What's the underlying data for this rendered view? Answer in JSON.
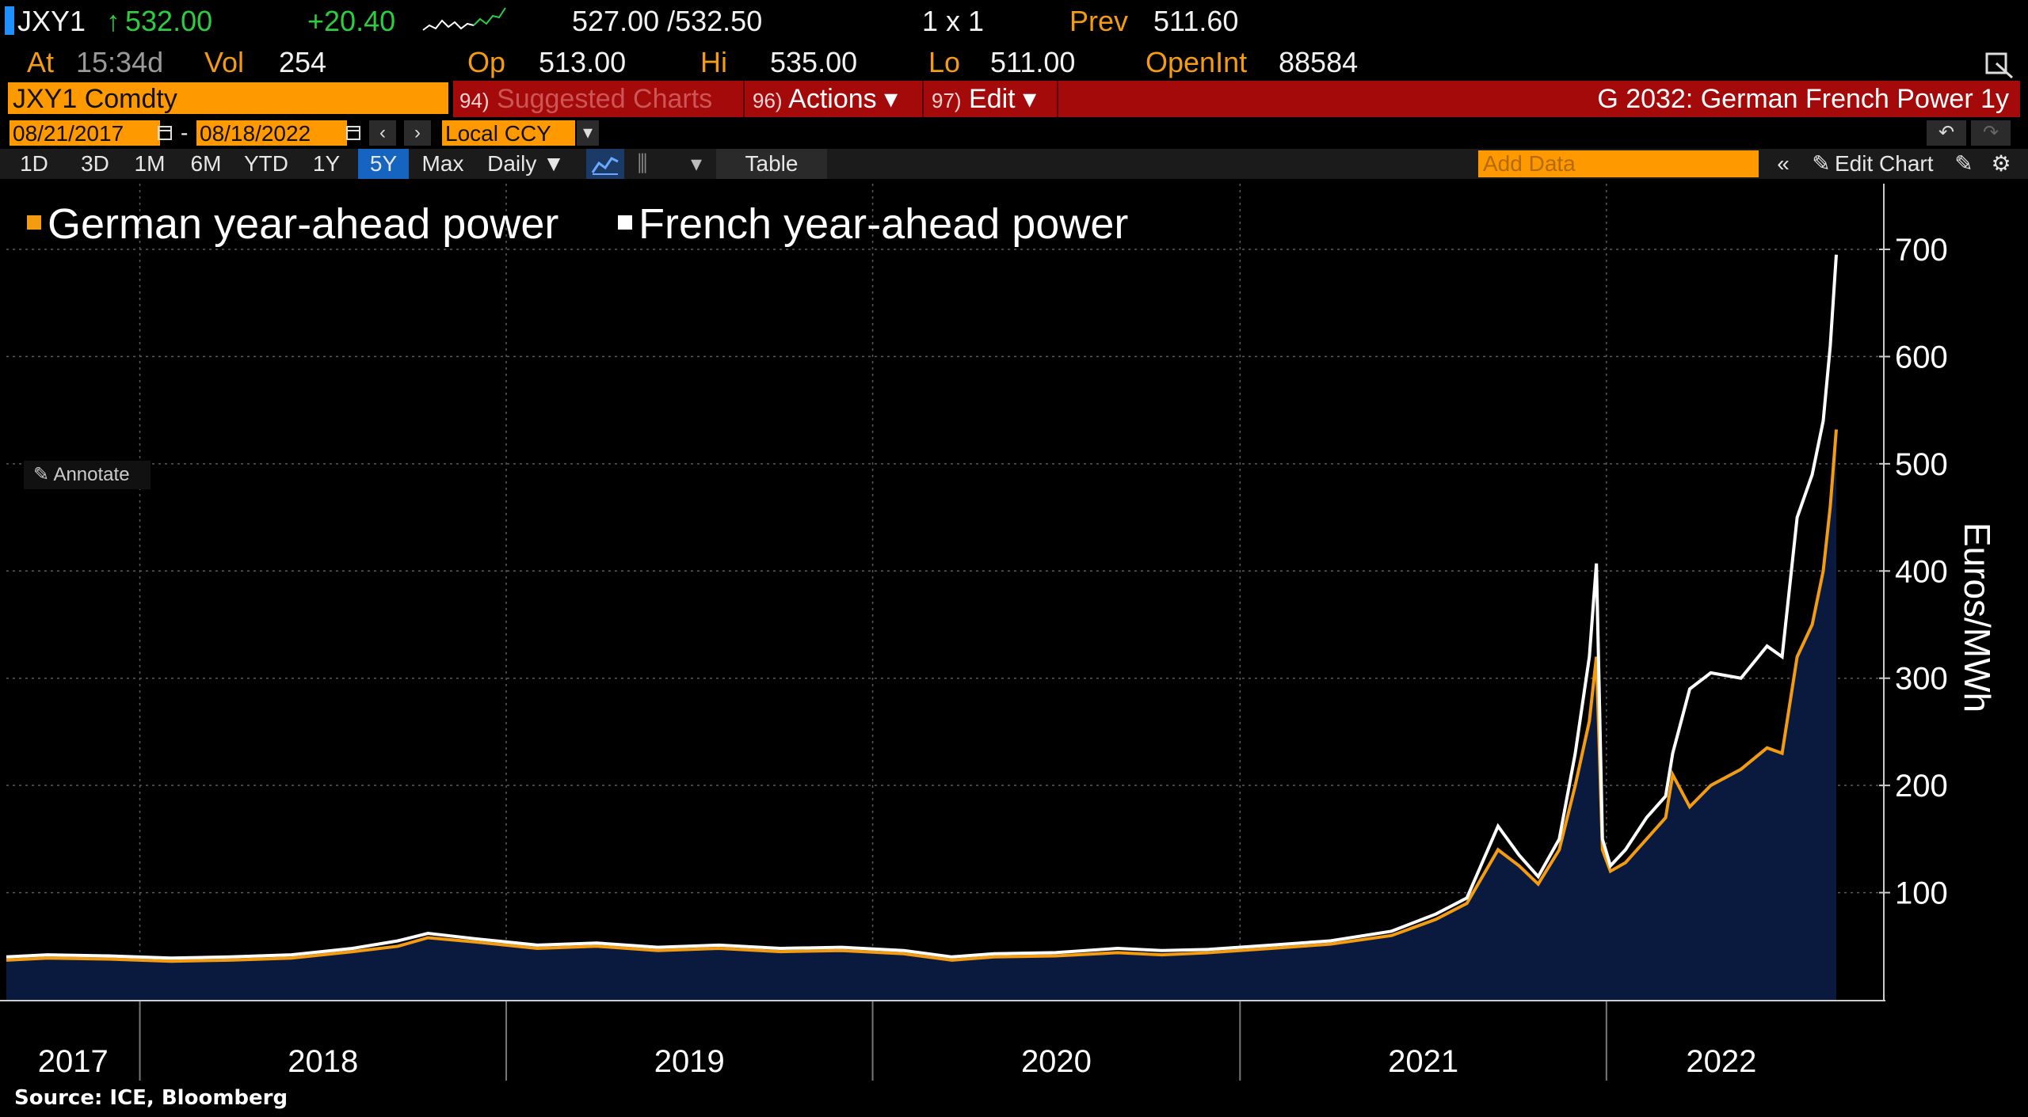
{
  "header": {
    "ticker": "JXY1",
    "last_arrow": "↑",
    "last": "532.00",
    "change": "+20.40",
    "bid_ask": "527.00 /532.50",
    "size": "1 x 1",
    "prev_label": "Prev",
    "prev": "511.60",
    "at_label": "At",
    "time": "15:34d",
    "vol_label": "Vol",
    "vol": "254",
    "op_label": "Op",
    "op": "513.00",
    "hi_label": "Hi",
    "hi": "535.00",
    "lo_label": "Lo",
    "lo": "511.00",
    "oi_label": "OpenInt",
    "oi": "88584"
  },
  "toolbar": {
    "security": "JXY1 Comdty",
    "suggested_num": "94)",
    "suggested": "Suggested Charts",
    "actions_num": "96)",
    "actions": "Actions ▾",
    "edit_num": "97)",
    "edit": "Edit ▾",
    "title": "G 2032: German French Power 1y",
    "start_date": "08/21/2017",
    "dash": "-",
    "end_date": "08/18/2022",
    "currency": "Local CCY",
    "periods": [
      "1D",
      "3D",
      "1M",
      "6M",
      "YTD",
      "1Y",
      "5Y",
      "Max"
    ],
    "active_period": "5Y",
    "frequency": "Daily ▼",
    "table": "Table",
    "add_data": "Add Data",
    "edit_chart": "Edit Chart",
    "annotate": "Annotate"
  },
  "colors": {
    "german": "#f39c12",
    "french": "#ffffff",
    "area": "#0a1a3e",
    "accent": "#ff9900",
    "red": "#a50a0a"
  },
  "source": "Source: ICE, Bloomberg",
  "chart_data": {
    "type": "line",
    "title": "",
    "xlabel": "",
    "ylabel": "Euros/MWh",
    "ylim": [
      0,
      700
    ],
    "yticks": [
      100,
      200,
      300,
      400,
      500,
      600,
      700
    ],
    "year_labels": [
      "2017",
      "2018",
      "2019",
      "2020",
      "2021",
      "2022"
    ],
    "legend_position": "top-left",
    "grid": true,
    "area_fill_series": "German year-ahead power",
    "x_dates": [
      "2017-08-21",
      "2017-10-01",
      "2017-12-01",
      "2018-02-01",
      "2018-04-01",
      "2018-06-01",
      "2018-08-01",
      "2018-09-15",
      "2018-10-15",
      "2018-12-01",
      "2019-02-01",
      "2019-04-01",
      "2019-06-01",
      "2019-08-01",
      "2019-10-01",
      "2019-12-01",
      "2020-02-01",
      "2020-03-20",
      "2020-05-01",
      "2020-07-01",
      "2020-09-01",
      "2020-10-15",
      "2020-12-01",
      "2021-02-01",
      "2021-04-01",
      "2021-06-01",
      "2021-07-15",
      "2021-08-15",
      "2021-09-15",
      "2021-10-06",
      "2021-10-25",
      "2021-11-15",
      "2021-12-01",
      "2021-12-15",
      "2021-12-22",
      "2021-12-28",
      "2022-01-05",
      "2022-01-20",
      "2022-02-10",
      "2022-03-01",
      "2022-03-08",
      "2022-03-25",
      "2022-04-15",
      "2022-05-15",
      "2022-06-10",
      "2022-06-25",
      "2022-07-10",
      "2022-07-25",
      "2022-08-05",
      "2022-08-12",
      "2022-08-18"
    ],
    "series": [
      {
        "name": "German year-ahead power",
        "values": [
          37,
          39,
          38,
          36,
          37,
          39,
          45,
          50,
          58,
          54,
          48,
          50,
          46,
          48,
          45,
          46,
          43,
          37,
          40,
          41,
          44,
          42,
          44,
          48,
          52,
          60,
          75,
          90,
          140,
          125,
          108,
          140,
          200,
          260,
          320,
          140,
          120,
          128,
          150,
          170,
          210,
          180,
          200,
          215,
          235,
          230,
          320,
          350,
          400,
          460,
          532
        ]
      },
      {
        "name": "French year-ahead power",
        "values": [
          40,
          42,
          41,
          39,
          40,
          42,
          48,
          55,
          62,
          57,
          51,
          53,
          49,
          51,
          48,
          49,
          46,
          40,
          43,
          44,
          48,
          46,
          47,
          51,
          55,
          64,
          80,
          95,
          162,
          135,
          115,
          150,
          230,
          320,
          407,
          150,
          125,
          140,
          170,
          190,
          230,
          290,
          305,
          300,
          330,
          320,
          450,
          490,
          540,
          610,
          695
        ]
      }
    ]
  }
}
